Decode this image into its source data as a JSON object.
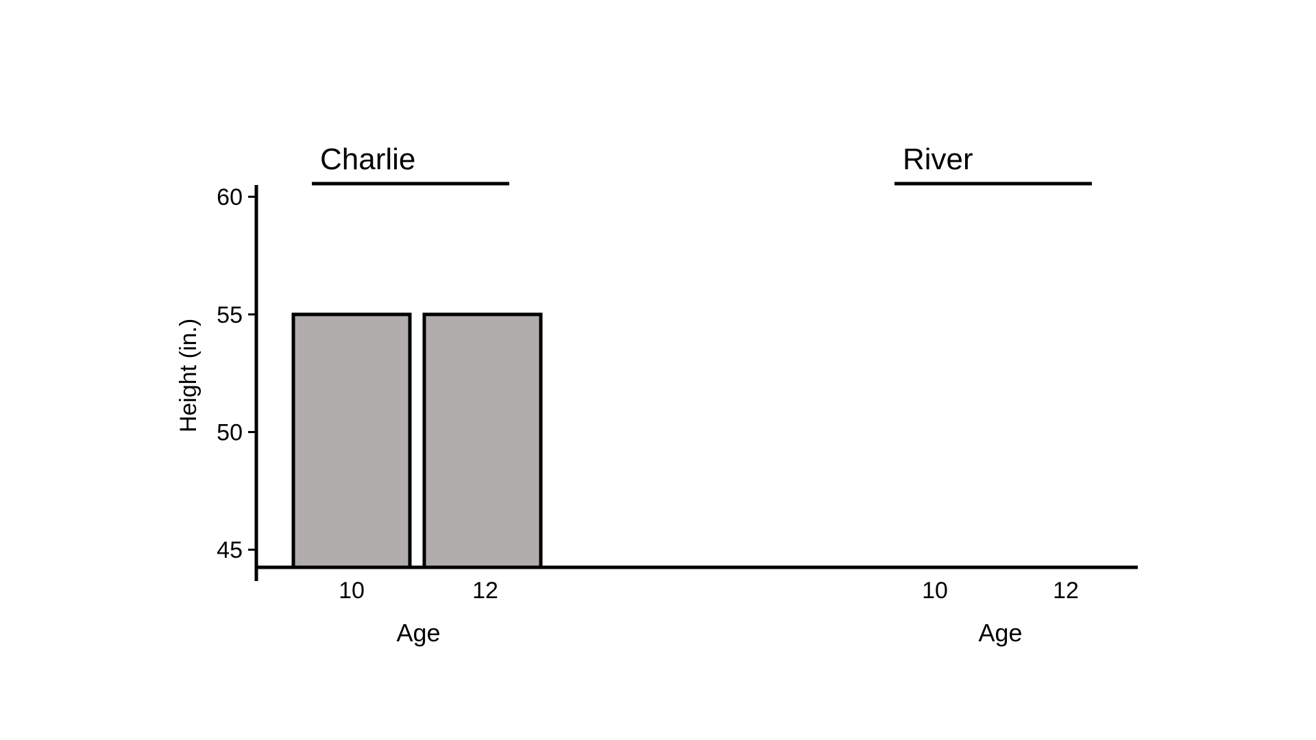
{
  "chart_data": {
    "type": "bar",
    "ylabel": "Height (in.)",
    "ylim": [
      44.25,
      60.5
    ],
    "yticks": [
      45,
      50,
      55,
      60
    ],
    "grid": false,
    "colors": {
      "bar_fill": "#b0adac",
      "stroke": "#000000"
    },
    "groups": [
      {
        "label": "Charlie",
        "xlabel": "Age",
        "categories": [
          "10",
          "12"
        ],
        "values": [
          55,
          55
        ]
      },
      {
        "label": "River",
        "xlabel": "Age",
        "categories": [
          "10",
          "12"
        ],
        "values": [
          null,
          null
        ]
      }
    ]
  }
}
